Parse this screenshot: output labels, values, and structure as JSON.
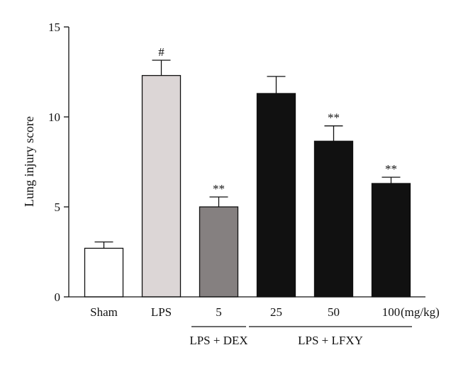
{
  "chart_data": {
    "type": "bar",
    "title": "",
    "ylabel": "Lung injury score",
    "ylim": [
      0,
      15
    ],
    "yticks": [
      0,
      5,
      10,
      15
    ],
    "categories": [
      "Sham",
      "LPS",
      "5",
      "25",
      "50",
      "100"
    ],
    "values": [
      2.7,
      12.3,
      5.0,
      11.3,
      8.65,
      6.3
    ],
    "errors": [
      0.35,
      0.85,
      0.55,
      0.95,
      0.85,
      0.35
    ],
    "significance": [
      "",
      "#",
      "**",
      "",
      "**",
      "**"
    ],
    "bar_colors": [
      "#ffffff",
      "#dcd6d6",
      "#858080",
      "#111111",
      "#111111",
      "#111111"
    ],
    "unit_label": "(mg/kg)",
    "groups": [
      {
        "label": "LPS + DEX",
        "from": 2,
        "to": 2
      },
      {
        "label": "LPS + LFXY",
        "from": 3,
        "to": 5
      }
    ]
  }
}
